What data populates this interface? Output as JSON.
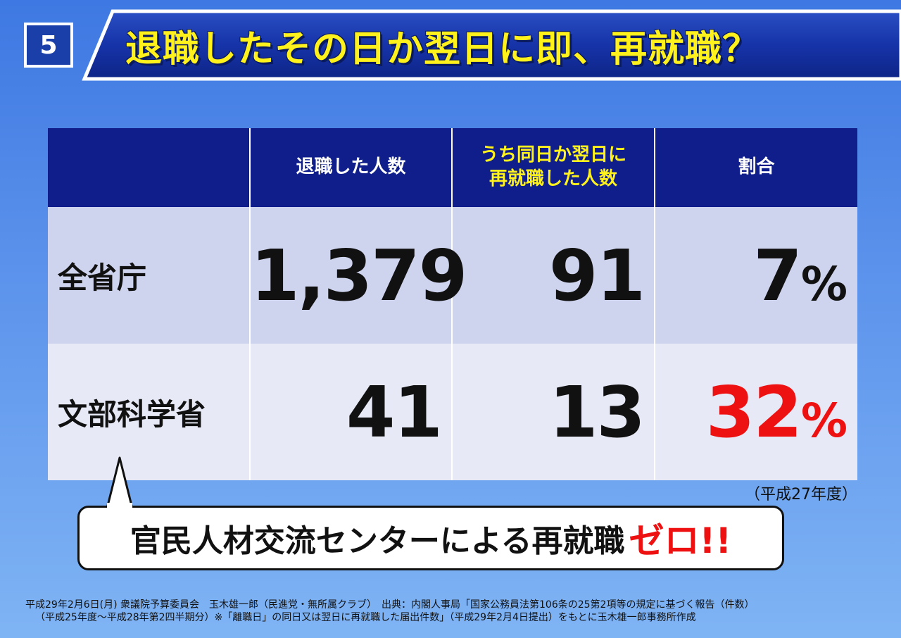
{
  "slide_number": "5",
  "title": "退職したその日か翌日に即、再就職？",
  "table": {
    "headers": {
      "col1": "退職した人数",
      "col2_line1": "うち同日か翌日に",
      "col2_line2": "再就職した人数",
      "col3": "割合"
    },
    "rows": [
      {
        "label": "全省庁",
        "retired": "1,379",
        "reemployed": "91",
        "ratio": "7",
        "pct": "%"
      },
      {
        "label": "文部科学省",
        "retired": "41",
        "reemployed": "13",
        "ratio": "32",
        "pct": "%"
      }
    ]
  },
  "year_note": "（平成27年度）",
  "callout": {
    "text": "官民人材交流センターによる再就職",
    "emphasis": "ゼロ!!"
  },
  "footer": {
    "line1": "平成29年2月6日(月) 衆議院予算委員会　玉木雄一郎（民進党・無所属クラブ）　出典：内閣人事局「国家公務員法第106条の25第2項等の規定に基づく報告（件数）",
    "line2": "（平成25年度～平成28年第2四半期分）※「離職日」の同日又は翌日に再就職した届出件数」（平成29年2月4日提出）をもとに玉木雄一郎事務所作成"
  },
  "colors": {
    "header_bg": "#0f1e8a",
    "title_text": "#fff21c",
    "highlight_red": "#ee1111",
    "row_a": "#ced3ee",
    "row_b": "#e7e9f6"
  }
}
